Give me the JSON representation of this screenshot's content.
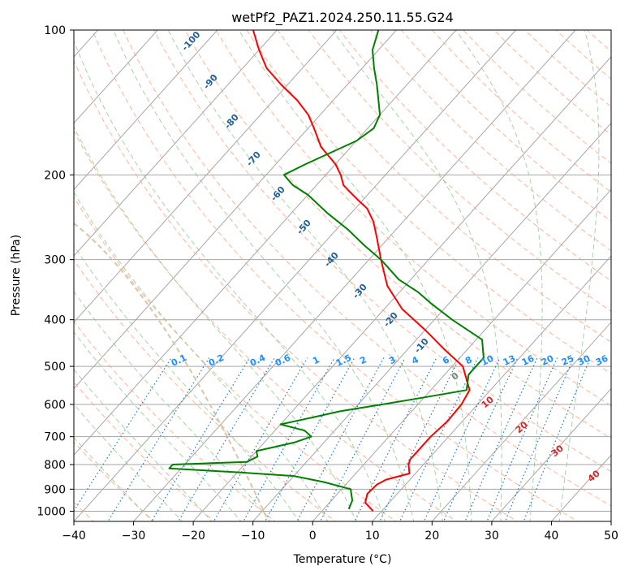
{
  "chart_data": {
    "type": "line",
    "diagram": "skew-T log-p",
    "title": "wetPf2_PAZ1.2024.250.11.55.G24",
    "xlabel": "Temperature (°C)",
    "ylabel": "Pressure (hPa)",
    "xlim": [
      -40,
      50
    ],
    "ylim": [
      1050,
      100
    ],
    "yscale": "log",
    "x_ticks": [
      -40,
      -30,
      -20,
      -10,
      0,
      10,
      20,
      30,
      40,
      50
    ],
    "x_tick_labels": [
      "−40",
      "−30",
      "−20",
      "−10",
      "0",
      "10",
      "20",
      "30",
      "40",
      "50"
    ],
    "y_ticks": [
      100,
      200,
      300,
      400,
      500,
      600,
      700,
      800,
      900,
      1000
    ],
    "y_tick_labels": [
      "100",
      "200",
      "300",
      "400",
      "500",
      "600",
      "700",
      "800",
      "900",
      "1000"
    ],
    "grid": true,
    "series": [
      {
        "role": "temperature",
        "color": "#ff0000",
        "points": [
          [
            1000,
            8.6
          ],
          [
            960,
            6
          ],
          [
            920,
            5
          ],
          [
            880,
            5.2
          ],
          [
            860,
            6
          ],
          [
            835,
            9
          ],
          [
            800,
            7.5
          ],
          [
            780,
            7
          ],
          [
            750,
            7
          ],
          [
            700,
            7
          ],
          [
            650,
            7.5
          ],
          [
            600,
            7.3
          ],
          [
            560,
            6.5
          ],
          [
            500,
            1.8
          ],
          [
            460,
            -4
          ],
          [
            420,
            -10
          ],
          [
            380,
            -17
          ],
          [
            340,
            -23
          ],
          [
            300,
            -28
          ],
          [
            270,
            -32
          ],
          [
            250,
            -35
          ],
          [
            235,
            -38
          ],
          [
            225,
            -41
          ],
          [
            215,
            -44
          ],
          [
            210,
            -45.5
          ],
          [
            200,
            -47.5
          ],
          [
            190,
            -50
          ],
          [
            175,
            -55
          ],
          [
            160,
            -59
          ],
          [
            150,
            -62
          ],
          [
            140,
            -66
          ],
          [
            130,
            -71
          ],
          [
            120,
            -76
          ],
          [
            110,
            -80
          ],
          [
            100,
            -84
          ]
        ]
      },
      {
        "role": "dewpoint",
        "color": "#008000",
        "points": [
          [
            990,
            4.2
          ],
          [
            950,
            3.5
          ],
          [
            900,
            1.5
          ],
          [
            870,
            -4
          ],
          [
            845,
            -10
          ],
          [
            830,
            -20
          ],
          [
            815,
            -32
          ],
          [
            800,
            -32
          ],
          [
            790,
            -20
          ],
          [
            770,
            -19
          ],
          [
            750,
            -20
          ],
          [
            720,
            -15
          ],
          [
            700,
            -13
          ],
          [
            680,
            -15
          ],
          [
            660,
            -20
          ],
          [
            640,
            -16
          ],
          [
            620,
            -12
          ],
          [
            600,
            -6
          ],
          [
            580,
            0
          ],
          [
            560,
            6
          ],
          [
            520,
            4
          ],
          [
            480,
            4
          ],
          [
            440,
            1
          ],
          [
            400,
            -7
          ],
          [
            370,
            -13
          ],
          [
            350,
            -17
          ],
          [
            330,
            -22
          ],
          [
            300,
            -28
          ],
          [
            280,
            -33
          ],
          [
            260,
            -38
          ],
          [
            240,
            -44
          ],
          [
            220,
            -50
          ],
          [
            210,
            -54
          ],
          [
            200,
            -57
          ],
          [
            190,
            -55
          ],
          [
            170,
            -50
          ],
          [
            160,
            -49
          ],
          [
            150,
            -50
          ],
          [
            130,
            -55
          ],
          [
            120,
            -58
          ],
          [
            110,
            -61
          ],
          [
            100,
            -63
          ]
        ]
      }
    ],
    "dry_adiabat_labels": [
      "-100",
      "-90",
      "-80",
      "-70",
      "-60",
      "-50",
      "-40",
      "-30",
      "-20",
      "-10"
    ],
    "moist_adiabat_labels": [
      "0",
      "10",
      "20",
      "30",
      "40"
    ],
    "mixing_ratio_labels": [
      "0.1",
      "0.2",
      "0.4",
      "0.6",
      "1",
      "1.5",
      "2",
      "3",
      "4",
      "6",
      "8",
      "10",
      "13",
      "16",
      "20",
      "25",
      "30",
      "36"
    ],
    "colors": {
      "temperature": "#ff0000",
      "dewpoint": "#008000",
      "isotherm": "#a6a6a6",
      "isobar": "#a6a6a6",
      "dry_adiabat": "#ffa07a",
      "moist_adiabat": "#90c890",
      "mixing_ratio": "#1f77d4",
      "dry_label": "#1f5f99",
      "mixing_label": "#1e90ff",
      "moist_label_cold": "#808080",
      "moist_label_warm": "#d62728"
    }
  }
}
